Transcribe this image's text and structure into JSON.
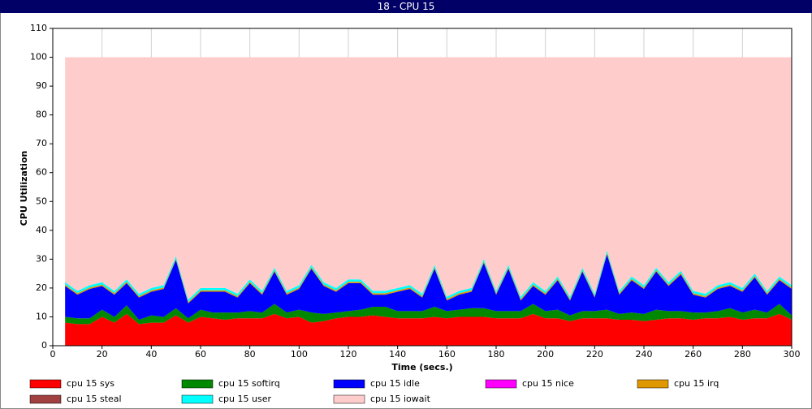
{
  "chart_data": {
    "type": "stacked-area",
    "title": "18 - CPU 15",
    "xlabel": "Time (secs.)",
    "ylabel": "CPU Utilization",
    "x": [
      5,
      10,
      15,
      20,
      25,
      30,
      35,
      40,
      45,
      50,
      55,
      60,
      65,
      70,
      75,
      80,
      85,
      90,
      95,
      100,
      105,
      110,
      115,
      120,
      125,
      130,
      135,
      140,
      145,
      150,
      155,
      160,
      165,
      170,
      175,
      180,
      185,
      190,
      195,
      200,
      205,
      210,
      215,
      220,
      225,
      230,
      235,
      240,
      245,
      250,
      255,
      260,
      265,
      270,
      275,
      280,
      285,
      290,
      295,
      300
    ],
    "xlim": [
      0,
      300
    ],
    "xticks": [
      0,
      20,
      40,
      60,
      80,
      100,
      120,
      140,
      160,
      180,
      200,
      220,
      240,
      260,
      280,
      300
    ],
    "ylim": [
      0,
      110
    ],
    "yticks": [
      0,
      10,
      20,
      30,
      40,
      50,
      60,
      70,
      80,
      90,
      100,
      110
    ],
    "grid": "x",
    "series": [
      {
        "name": "cpu 15 sys",
        "color": "#ff0000",
        "values": [
          8,
          7.5,
          7.5,
          10,
          8,
          11,
          7.5,
          8,
          8,
          10.5,
          8,
          10,
          9.5,
          9,
          9.5,
          9.5,
          9.5,
          11,
          9.5,
          10,
          8,
          8.5,
          9.5,
          10,
          10,
          10.5,
          10,
          9.5,
          9.5,
          9.5,
          10,
          9.5,
          10,
          10,
          10,
          9.5,
          9.5,
          9.5,
          11,
          9.5,
          9.5,
          8.5,
          9.5,
          9.5,
          9.5,
          9,
          9,
          8.5,
          9,
          9.5,
          9.5,
          9,
          9.5,
          9.5,
          10,
          9,
          9.5,
          9.5,
          11,
          9
        ]
      },
      {
        "name": "cpu 15 softirq",
        "color": "#008800",
        "values": [
          2,
          2,
          2,
          2.5,
          2,
          3,
          1.5,
          2.5,
          2,
          2.5,
          1.5,
          2.5,
          2,
          2.5,
          2,
          2.5,
          2,
          3.5,
          2,
          2.5,
          3.5,
          2.5,
          2,
          2,
          2.5,
          3,
          3.5,
          2.5,
          2.5,
          2.5,
          3.5,
          2.5,
          2.5,
          3,
          3,
          2.5,
          2.5,
          2.5,
          3.5,
          2.5,
          3,
          2,
          2.5,
          2.5,
          3,
          2,
          2.5,
          2.5,
          3.5,
          2.5,
          2.5,
          2.5,
          2,
          2.5,
          3,
          2.5,
          3,
          2,
          3.5,
          1.5
        ]
      },
      {
        "name": "cpu 15 idle",
        "color": "#0000ff",
        "values": [
          10.7,
          8.2,
          10.2,
          8.2,
          7.7,
          7.7,
          7.7,
          8.2,
          9.7,
          16.7,
          5.2,
          6.2,
          7.2,
          7.2,
          5.2,
          9.7,
          6.2,
          11.2,
          6.2,
          7.2,
          15.2,
          9.7,
          7.2,
          9.7,
          9.2,
          4.2,
          4.2,
          6.7,
          7.7,
          4.7,
          13.2,
          3.7,
          5.2,
          5.7,
          15.7,
          5.7,
          14.7,
          3.7,
          6.2,
          5.7,
          10.2,
          5.2,
          13.7,
          4.7,
          19.2,
          6.7,
          11.2,
          8.7,
          13.2,
          8.7,
          12.7,
          6.2,
          5.2,
          7.7,
          7.7,
          7.2,
          11.2,
          6.2,
          8.2,
          9.2
        ]
      },
      {
        "name": "cpu 15 nice",
        "color": "#ff00ff",
        "values": [
          0,
          0,
          0,
          0,
          0,
          0,
          0,
          0,
          0,
          0,
          0,
          0,
          0,
          0,
          0,
          0,
          0,
          0,
          0,
          0,
          0,
          0,
          0,
          0,
          0,
          0,
          0,
          0,
          0,
          0,
          0,
          0,
          0,
          0,
          0,
          0,
          0,
          0,
          0,
          0,
          0,
          0,
          0,
          0,
          0,
          0,
          0,
          0,
          0,
          0,
          0,
          0,
          0,
          0,
          0,
          0,
          0,
          0,
          0,
          0
        ]
      },
      {
        "name": "cpu 15 irq",
        "color": "#e09800",
        "values": [
          0.5,
          0.5,
          0.5,
          0.5,
          0.5,
          0.5,
          0.5,
          0.5,
          0.5,
          0.5,
          0.5,
          0.5,
          0.5,
          0.5,
          0.5,
          0.5,
          0.5,
          0.5,
          0.5,
          0.5,
          0.5,
          0.5,
          0.5,
          0.5,
          0.5,
          0.5,
          0.5,
          0.5,
          0.5,
          0.5,
          0.5,
          0.5,
          0.5,
          0.5,
          0.5,
          0.5,
          0.5,
          0.5,
          0.5,
          0.5,
          0.5,
          0.5,
          0.5,
          0.5,
          0.5,
          0.5,
          0.5,
          0.5,
          0.5,
          0.5,
          0.5,
          0.5,
          0.5,
          0.5,
          0.5,
          0.5,
          0.5,
          0.5,
          0.5,
          0.5
        ]
      },
      {
        "name": "cpu 15 steal",
        "color": "#a04040",
        "values": [
          0,
          0,
          0,
          0,
          0,
          0,
          0,
          0,
          0,
          0,
          0,
          0,
          0,
          0,
          0,
          0,
          0,
          0,
          0,
          0,
          0,
          0,
          0,
          0,
          0,
          0,
          0,
          0,
          0,
          0,
          0,
          0,
          0,
          0,
          0,
          0,
          0,
          0,
          0,
          0,
          0,
          0,
          0,
          0,
          0,
          0,
          0,
          0,
          0,
          0,
          0,
          0,
          0,
          0,
          0,
          0,
          0,
          0,
          0,
          0
        ]
      },
      {
        "name": "cpu 15 user",
        "color": "#00ffff",
        "values": [
          0.8,
          0.8,
          0.8,
          0.8,
          0.8,
          0.8,
          0.8,
          0.8,
          0.8,
          0.8,
          0.8,
          0.8,
          0.8,
          0.8,
          0.8,
          0.8,
          0.8,
          0.8,
          0.8,
          0.8,
          0.8,
          0.8,
          0.8,
          0.8,
          0.8,
          0.8,
          0.8,
          0.8,
          0.8,
          0.8,
          0.8,
          0.8,
          0.8,
          0.8,
          0.8,
          0.8,
          0.8,
          0.8,
          0.8,
          0.8,
          0.8,
          0.8,
          0.8,
          0.8,
          0.8,
          0.8,
          0.8,
          0.8,
          0.8,
          0.8,
          0.8,
          0.8,
          0.8,
          0.8,
          0.8,
          0.8,
          0.8,
          0.8,
          0.8,
          0.8
        ]
      },
      {
        "name": "cpu 15 iowait",
        "color": "#ffcccc",
        "values": [
          78,
          81,
          79,
          78,
          81,
          77,
          82,
          80,
          79,
          69,
          84,
          80,
          80,
          80,
          82,
          77,
          81,
          73,
          81,
          79,
          72,
          78,
          80,
          77,
          77,
          81,
          81,
          80,
          79,
          82,
          72,
          83,
          81,
          80,
          70,
          81,
          72,
          83,
          78,
          81,
          76,
          83,
          73,
          82,
          67,
          81,
          76,
          79,
          73,
          78,
          74,
          81,
          82,
          79,
          78,
          80,
          75,
          81,
          76,
          79
        ]
      }
    ]
  }
}
